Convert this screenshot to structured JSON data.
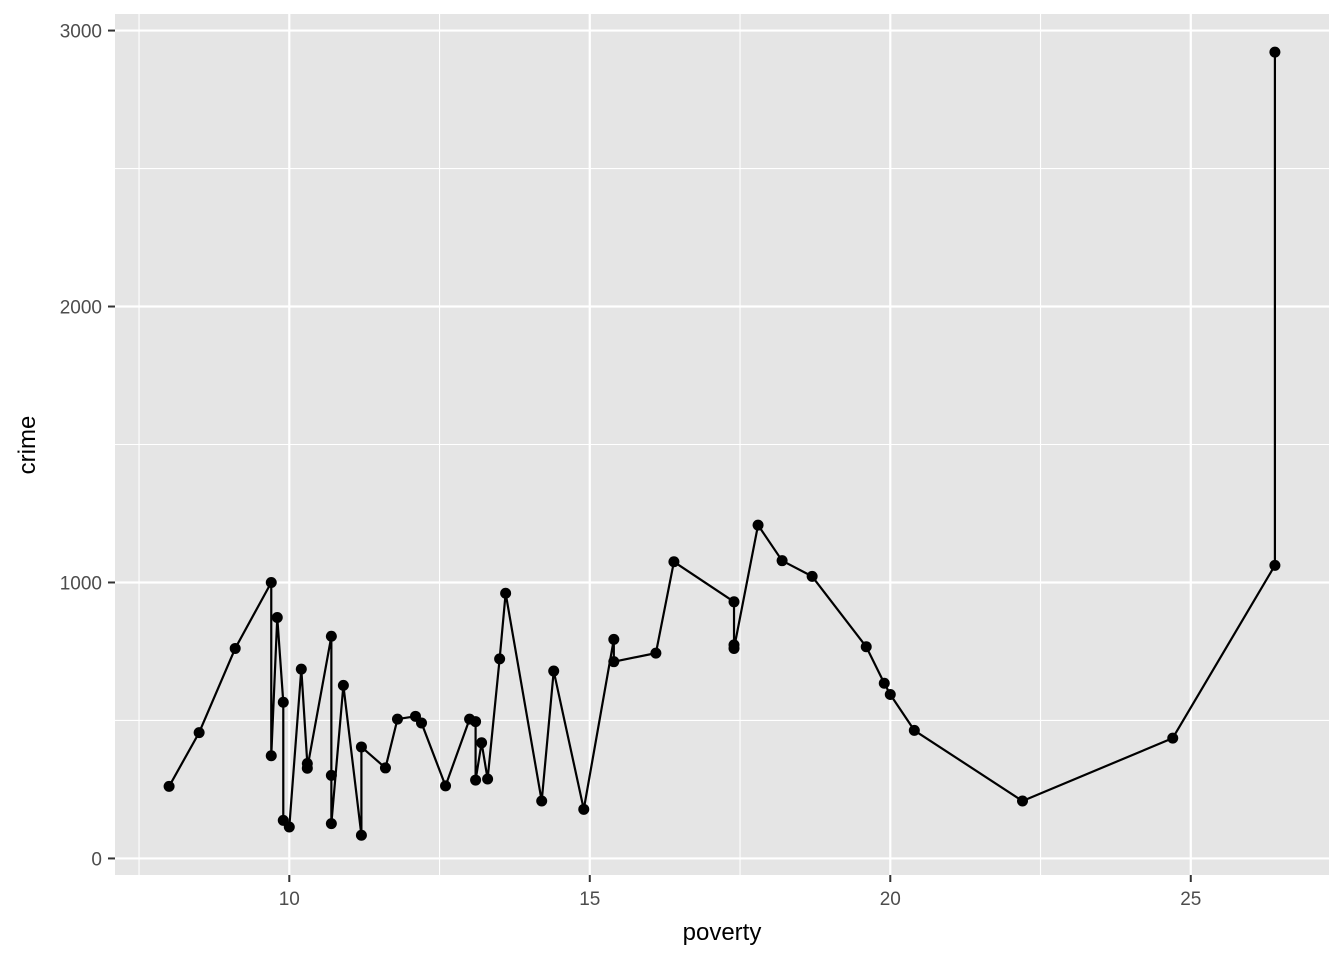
{
  "chart_data": {
    "type": "line",
    "markers": true,
    "xlabel": "poverty",
    "ylabel": "crime",
    "xlim": [
      7.1,
      27.3
    ],
    "ylim": [
      -60,
      3060
    ],
    "x_major_ticks": [
      10,
      15,
      20,
      25
    ],
    "x_minor_ticks": [
      7.5,
      12.5,
      17.5,
      22.5
    ],
    "y_major_ticks": [
      0,
      1000,
      2000,
      3000
    ],
    "y_minor_ticks": [
      500,
      1500,
      2500
    ],
    "grid": true,
    "colors": {
      "panel_background": "#e5e5e5",
      "grid": "#ffffff",
      "series": "#000000",
      "tick_label": "#4d4d4d"
    },
    "series": [
      {
        "points": [
          [
            8.0,
            261
          ],
          [
            8.5,
            456
          ],
          [
            9.1,
            761
          ],
          [
            9.7,
            1000
          ],
          [
            9.7,
            372
          ],
          [
            9.8,
            873
          ],
          [
            9.9,
            566
          ],
          [
            9.9,
            138
          ],
          [
            10.0,
            114
          ],
          [
            10.2,
            686
          ],
          [
            10.3,
            344
          ],
          [
            10.3,
            327
          ],
          [
            10.7,
            805
          ],
          [
            10.7,
            301
          ],
          [
            10.7,
            126
          ],
          [
            10.9,
            627
          ],
          [
            11.2,
            84
          ],
          [
            11.2,
            404
          ],
          [
            11.6,
            328
          ],
          [
            11.8,
            505
          ],
          [
            12.1,
            515
          ],
          [
            12.2,
            491
          ],
          [
            12.6,
            263
          ],
          [
            13.0,
            505
          ],
          [
            13.1,
            496
          ],
          [
            13.1,
            284
          ],
          [
            13.2,
            419
          ],
          [
            13.3,
            288
          ],
          [
            13.5,
            723
          ],
          [
            13.6,
            961
          ],
          [
            14.2,
            208
          ],
          [
            14.4,
            679
          ],
          [
            14.9,
            178
          ],
          [
            15.4,
            794
          ],
          [
            15.4,
            713
          ],
          [
            16.1,
            744
          ],
          [
            16.4,
            1075
          ],
          [
            17.4,
            930
          ],
          [
            17.4,
            774
          ],
          [
            17.4,
            761
          ],
          [
            17.8,
            1208
          ],
          [
            18.2,
            1079
          ],
          [
            18.7,
            1022
          ],
          [
            19.6,
            767
          ],
          [
            19.9,
            635
          ],
          [
            20.0,
            594
          ],
          [
            20.4,
            464
          ],
          [
            22.2,
            208
          ],
          [
            24.7,
            436
          ],
          [
            26.4,
            1062
          ],
          [
            26.4,
            2922
          ]
        ]
      }
    ]
  }
}
